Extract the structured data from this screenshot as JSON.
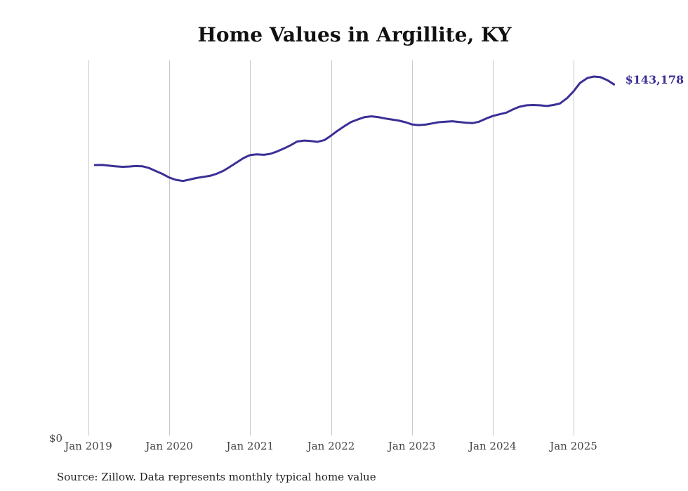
{
  "chart_data": {
    "type": "line",
    "title": "Home Values in Argillite, KY",
    "xlabel": "",
    "ylabel": "",
    "y_tick_label": "$0",
    "x_tick_labels": [
      "Jan 2019",
      "Jan 2020",
      "Jan 2021",
      "Jan 2022",
      "Jan 2023",
      "Jan 2024",
      "Jan 2025"
    ],
    "x_ticks": [
      2019,
      2020,
      2021,
      2022,
      2023,
      2024,
      2025
    ],
    "xlim": [
      2018.93,
      2025.67
    ],
    "ylim": [
      0,
      153000
    ],
    "grid": "vertical",
    "end_label": "$143,178",
    "line_color": "#3b3096",
    "series": [
      {
        "x": [
          2019.08,
          2019.17,
          2019.25,
          2019.33,
          2019.42,
          2019.5,
          2019.58,
          2019.67,
          2019.75,
          2019.83,
          2019.92,
          2020.0,
          2020.08,
          2020.17,
          2020.25,
          2020.33,
          2020.42,
          2020.5,
          2020.58,
          2020.67,
          2020.75,
          2020.83,
          2020.92,
          2021.0,
          2021.08,
          2021.17,
          2021.25,
          2021.33,
          2021.42,
          2021.5,
          2021.58,
          2021.67,
          2021.75,
          2021.83,
          2021.92,
          2022.0,
          2022.08,
          2022.17,
          2022.25,
          2022.33,
          2022.42,
          2022.5,
          2022.58,
          2022.67,
          2022.75,
          2022.83,
          2022.92,
          2023.0,
          2023.08,
          2023.17,
          2023.25,
          2023.33,
          2023.42,
          2023.5,
          2023.58,
          2023.67,
          2023.75,
          2023.83,
          2023.92,
          2024.0,
          2024.08,
          2024.17,
          2024.25,
          2024.33,
          2024.42,
          2024.5,
          2024.58,
          2024.67,
          2024.75,
          2024.83,
          2024.92,
          2025.0,
          2025.08,
          2025.17,
          2025.25,
          2025.33,
          2025.42,
          2025.5
        ],
        "values": [
          110300,
          110400,
          110100,
          109800,
          109600,
          109700,
          109900,
          109800,
          109100,
          107900,
          106600,
          105200,
          104300,
          103800,
          104400,
          105000,
          105500,
          105900,
          106700,
          108000,
          109600,
          111300,
          113200,
          114400,
          114700,
          114500,
          114900,
          115800,
          117100,
          118400,
          119900,
          120300,
          120100,
          119800,
          120500,
          122300,
          124300,
          126300,
          127900,
          128900,
          129900,
          130200,
          129900,
          129300,
          128900,
          128500,
          127800,
          126900,
          126600,
          126800,
          127300,
          127800,
          128000,
          128200,
          127900,
          127600,
          127400,
          128000,
          129300,
          130300,
          131000,
          131700,
          133000,
          134100,
          134700,
          134800,
          134700,
          134400,
          134800,
          135400,
          137600,
          140400,
          143800,
          145800,
          146400,
          146200,
          144900,
          143200
        ]
      }
    ]
  },
  "source_text": "Source: Zillow. Data represents monthly typical home value"
}
